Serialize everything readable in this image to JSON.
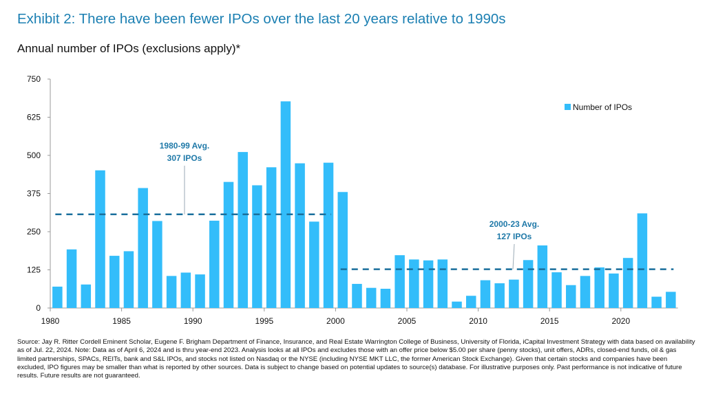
{
  "title": "Exhibit 2: There have been fewer IPOs over the last 20 years relative to 1990s",
  "subtitle": "Annual number of IPOs (exclusions apply)*",
  "footnote": "Source: Jay R. Ritter Cordell Eminent Scholar, Eugene F. Brigham Department of Finance, Insurance, and Real Estate Warrington College of Business, University of Florida, iCapital Investment Strategy with data based on availability as of Jul. 22, 2024. Note: Data as of April 6, 2024 and is thru year-end 2023. Analysis looks at all IPOs and excludes those with an offer price below $5.00 per share (penny stocks), unit offers, ADRs, closed-end funds, oil & gas limited partnerships, SPACs, REITs, bank and S&L IPOs, and stocks not listed on Nasdaq or the NYSE (including NYSE MKT LLC, the former American Stock Exchange). Given that certain stocks and companies have been excluded, IPO figures may be smaller than what is reported by other sources. Data is subject to change based on potential updates to source(s) database. For illustrative purposes only. Past performance is not indicative of future results. Future results are not guaranteed.",
  "colors": {
    "bar": "#33bdfa",
    "avg_line": "#1a6f9c",
    "title": "#1b7fb2",
    "annotation": "#1f79a8"
  },
  "chart_data": {
    "type": "bar",
    "categories": [
      1980,
      1981,
      1982,
      1983,
      1984,
      1985,
      1986,
      1987,
      1988,
      1989,
      1990,
      1991,
      1992,
      1993,
      1994,
      1995,
      1996,
      1997,
      1998,
      1999,
      2000,
      2001,
      2002,
      2003,
      2004,
      2005,
      2006,
      2007,
      2008,
      2009,
      2010,
      2011,
      2012,
      2013,
      2014,
      2015,
      2016,
      2017,
      2018,
      2019,
      2020,
      2021,
      2022,
      2023
    ],
    "series": [
      {
        "name": "Number of IPOs",
        "values": [
          70,
          192,
          77,
          451,
          171,
          186,
          393,
          285,
          105,
          116,
          110,
          286,
          413,
          511,
          402,
          461,
          677,
          474,
          283,
          476,
          380,
          79,
          66,
          63,
          173,
          159,
          156,
          159,
          21,
          40,
          91,
          81,
          93,
          157,
          205,
          117,
          75,
          105,
          133,
          113,
          164,
          310,
          37,
          53
        ]
      }
    ],
    "x_tick_labels": [
      "1980",
      "1985",
      "1990",
      "1995",
      "2000",
      "2005",
      "2010",
      "2015",
      "2020"
    ],
    "y_tick_labels": [
      "0",
      "125",
      "250",
      "375",
      "500",
      "625",
      "750"
    ],
    "ylim": [
      0,
      750
    ],
    "grid": false,
    "legend": "top-right",
    "averages": [
      {
        "from": 1980,
        "to": 1999,
        "value": 307,
        "label_line1": "1980-99 Avg.",
        "label_line2": "307 IPOs"
      },
      {
        "from": 2000,
        "to": 2023,
        "value": 127,
        "label_line1": "2000-23 Avg.",
        "label_line2": "127 IPOs"
      }
    ]
  }
}
